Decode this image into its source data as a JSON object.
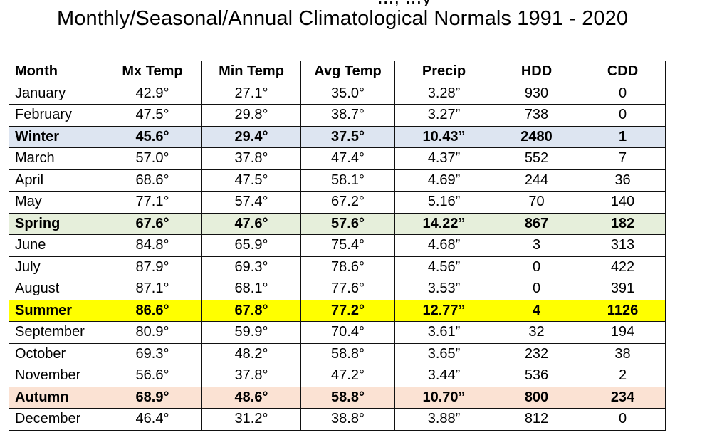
{
  "header": {
    "title_fragment": "..., ...y",
    "title": "Monthly/Seasonal/Annual Climatological Normals 1991 - 2020"
  },
  "colors": {
    "winter": "#dde5f1",
    "spring": "#e6efdb",
    "summer": "#ffff00",
    "autumn": "#fbe2d3"
  },
  "table": {
    "columns": [
      "Month",
      "Mx Temp",
      "Min Temp",
      "Avg Temp",
      "Precip",
      "HDD",
      "CDD"
    ],
    "rows": [
      {
        "type": "month",
        "cells": [
          "January",
          "42.9°",
          "27.1°",
          "35.0°",
          "3.28”",
          "930",
          "0"
        ]
      },
      {
        "type": "month",
        "cells": [
          "February",
          "47.5°",
          "29.8°",
          "38.7°",
          "3.27”",
          "738",
          "0"
        ]
      },
      {
        "type": "season",
        "season": "winter",
        "cells": [
          "Winter",
          "45.6°",
          "29.4°",
          "37.5°",
          "10.43”",
          "2480",
          "1"
        ]
      },
      {
        "type": "month",
        "cells": [
          "March",
          "57.0°",
          "37.8°",
          "47.4°",
          "4.37”",
          "552",
          "7"
        ]
      },
      {
        "type": "month",
        "cells": [
          "April",
          "68.6°",
          "47.5°",
          "58.1°",
          "4.69”",
          "244",
          "36"
        ]
      },
      {
        "type": "month",
        "cells": [
          "May",
          "77.1°",
          "57.4°",
          "67.2°",
          "5.16”",
          "70",
          "140"
        ]
      },
      {
        "type": "season",
        "season": "spring",
        "cells": [
          "Spring",
          "67.6°",
          "47.6°",
          "57.6°",
          "14.22”",
          "867",
          "182"
        ]
      },
      {
        "type": "month",
        "cells": [
          "June",
          "84.8°",
          "65.9°",
          "75.4°",
          "4.68”",
          "3",
          "313"
        ]
      },
      {
        "type": "month",
        "cells": [
          "July",
          "87.9°",
          "69.3°",
          "78.6°",
          "4.56”",
          "0",
          "422"
        ]
      },
      {
        "type": "month",
        "cells": [
          "August",
          "87.1°",
          "68.1°",
          "77.6°",
          "3.53”",
          "0",
          "391"
        ]
      },
      {
        "type": "season",
        "season": "summer",
        "cells": [
          "Summer",
          "86.6°",
          "67.8°",
          "77.2°",
          "12.77”",
          "4",
          "1126"
        ]
      },
      {
        "type": "month",
        "cells": [
          "September",
          "80.9°",
          "59.9°",
          "70.4°",
          "3.61”",
          "32",
          "194"
        ]
      },
      {
        "type": "month",
        "cells": [
          "October",
          "69.3°",
          "48.2°",
          "58.8°",
          "3.65”",
          "232",
          "38"
        ]
      },
      {
        "type": "month",
        "cells": [
          "November",
          "56.6°",
          "37.8°",
          "47.2°",
          "3.44”",
          "536",
          "2"
        ]
      },
      {
        "type": "season",
        "season": "autumn",
        "cells": [
          "Autumn",
          "68.9°",
          "48.6°",
          "58.8°",
          "10.70”",
          "800",
          "234"
        ]
      },
      {
        "type": "month",
        "cells": [
          "December",
          "46.4°",
          "31.2°",
          "38.8°",
          "3.88”",
          "812",
          "0"
        ]
      }
    ]
  }
}
